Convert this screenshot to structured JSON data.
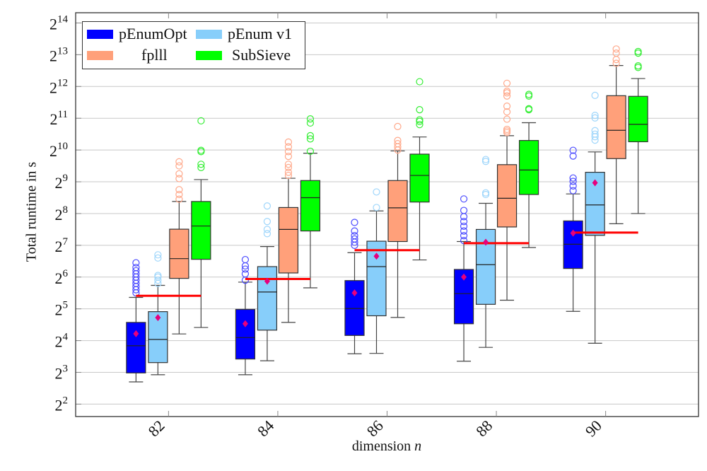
{
  "chart_data": {
    "type": "box",
    "xlabel": "dimension n",
    "ylabel": "Total runtime in s",
    "y_scale": "log2",
    "ylim": [
      3.05,
      20480
    ],
    "xlim": [
      80.3,
      91.7
    ],
    "y_tick_exponents": [
      2,
      3,
      4,
      5,
      6,
      7,
      8,
      9,
      10,
      11,
      12,
      13,
      14
    ],
    "y_tick_base": "2",
    "categories": [
      "82",
      "84",
      "86",
      "88",
      "90"
    ],
    "grid": "horizontal",
    "legend_position": "top-left",
    "series": [
      {
        "name": "pEnumOpt",
        "color": "#0000ff",
        "outlier_color": "#4a4aff",
        "boxes": [
          {
            "low": 6.5,
            "q1": 7.9,
            "median": 14.3,
            "q3": 23.8,
            "high": 41.1,
            "mean": 18.6,
            "outliers": [
              45.3,
              48.5,
              52,
              55.7,
              59.7,
              64,
              68.6,
              73.5,
              78.8,
              87.4
            ]
          },
          {
            "low": 7.6,
            "q1": 10.7,
            "median": 17.1,
            "q3": 31.6,
            "high": 57.3,
            "mean": 23.1,
            "outliers": [
              59.7,
              68.6,
              76.1,
              81.6,
              93.7
            ]
          },
          {
            "low": 12.0,
            "q1": 17.9,
            "median": 32.2,
            "q3": 59.3,
            "high": 109,
            "mean": 45.3,
            "outliers": [
              128,
              137,
              147,
              158,
              175,
              211
            ]
          },
          {
            "low": 10.2,
            "q1": 23.1,
            "median": 44.6,
            "q3": 75.6,
            "high": 139,
            "mean": 64,
            "outliers": [
              142,
              158,
              175,
              194,
              215,
              239,
              274,
              352
            ]
          },
          {
            "low": 30.3,
            "q1": 77.2,
            "median": 131,
            "q3": 218,
            "high": 393,
            "mean": 167,
            "outliers": [
              422,
              468,
              516,
              556,
              898,
              1017
            ]
          }
        ]
      },
      {
        "name": "pEnum v1",
        "color": "#87cefa",
        "outlier_color": "#9fd6fb",
        "boxes": [
          {
            "low": 7.6,
            "q1": 9.9,
            "median": 16.4,
            "q3": 30.1,
            "high": 53.4,
            "mean": 26.4,
            "outliers": [
              55.7,
              59.7,
              64,
              66.3,
              97,
              104
            ]
          },
          {
            "low": 10.3,
            "q1": 20.1,
            "median": 46.2,
            "q3": 80.4,
            "high": 124.5,
            "mean": 58.5,
            "outliers": [
              165,
              181,
              215,
              302
            ]
          },
          {
            "low": 12.1,
            "q1": 27.5,
            "median": 80.4,
            "q3": 140,
            "high": 271,
            "mean": 101,
            "outliers": [
              292,
              410
            ]
          },
          {
            "low": 13.8,
            "q1": 35.3,
            "median": 83.9,
            "q3": 181,
            "high": 320,
            "mean": 137,
            "outliers": [
              388,
              402,
              798,
              832
            ]
          },
          {
            "low": 15.1,
            "q1": 159,
            "median": 309,
            "q3": 630,
            "high": 982,
            "mean": 501,
            "outliers": [
              1270,
              1370,
              1448,
              1563,
              2063,
              2180,
              3373
            ]
          }
        ]
      },
      {
        "name": "fplll",
        "color": "#ffa07a",
        "outlier_color": "#ffa88a",
        "boxes": [
          {
            "low": 18.5,
            "q1": 62.2,
            "median": 95.7,
            "q3": 182,
            "high": 333,
            "outliers": [
              350,
              388,
              431,
              549,
              609,
              724,
              792
            ]
          },
          {
            "low": 23.8,
            "q1": 70,
            "median": 181,
            "q3": 292,
            "high": 553,
            "outliers": [
              588,
              630,
              699,
              750,
              891,
              989,
              1097,
              1218
            ]
          },
          {
            "low": 26.5,
            "q1": 139,
            "median": 290,
            "q3": 526,
            "high": 1003,
            "outliers": [
              1024,
              1097,
              1176,
              1261,
              1710
            ]
          },
          {
            "low": 38.6,
            "q1": 191,
            "median": 357,
            "q3": 744,
            "high": 1399,
            "outliers": [
              1499,
              1552,
              1607,
              2006,
              2353,
              2665,
              3327,
              3566,
              3691,
              4390
            ]
          },
          {
            "low": 205,
            "q1": 849,
            "median": 1574,
            "q3": 3350,
            "high": 6472,
            "outliers": [
              6793,
              7382,
              8480,
              9280
            ]
          }
        ]
      },
      {
        "name": "SubSieve",
        "color": "#00ff00",
        "outlier_color": "#33ee33",
        "boxes": [
          {
            "low": 21.3,
            "q1": 94.3,
            "median": 195,
            "q3": 333,
            "high": 537,
            "outliers": [
              699,
              750,
              989,
              1017,
              1937
            ]
          },
          {
            "low": 50.6,
            "q1": 175,
            "median": 362,
            "q3": 526,
            "high": 955,
            "outliers": [
              996,
              1305,
              1399,
              1846,
              2020
            ]
          },
          {
            "low": 93,
            "q1": 329,
            "median": 588,
            "q3": 936,
            "high": 1361,
            "outliers": [
              1783,
              1911,
              1978,
              2469,
              4544
            ]
          },
          {
            "low": 122,
            "q1": 388,
            "median": 662,
            "q3": 1261,
            "high": 1859,
            "outliers": [
              2469,
              2521,
              3327,
              3444
            ]
          },
          {
            "low": 256,
            "q1": 1226,
            "median": 1795,
            "q3": 3304,
            "high": 4870,
            "outliers": [
              6208,
              6427,
              8480,
              8780
            ]
          }
        ]
      }
    ],
    "mean_marker_color": "#e6007e",
    "reference_lines": {
      "color": "#ff0000",
      "values": [
        42.5,
        61.4,
        115,
        134,
        169
      ]
    }
  }
}
